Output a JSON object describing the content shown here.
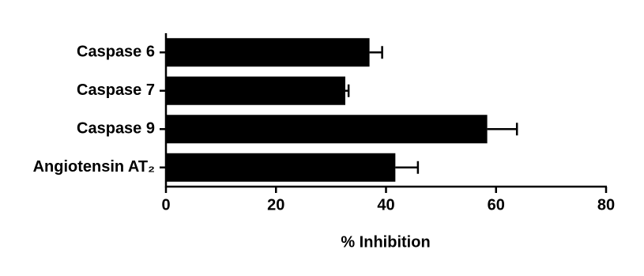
{
  "chart_data": {
    "type": "hbar",
    "x_label": "% Inhibition",
    "categories": [
      "Caspase 6",
      "Caspase 7",
      "Caspase 9",
      "Angiotensin AT₂"
    ],
    "values": [
      37,
      32.6,
      58.4,
      41.7
    ],
    "errors": [
      2.3,
      0.6,
      5.4,
      4.1
    ],
    "color": "#000000",
    "xlim": [
      0,
      80
    ],
    "xticks": [
      0,
      20,
      40,
      60,
      80
    ],
    "grid": false
  }
}
